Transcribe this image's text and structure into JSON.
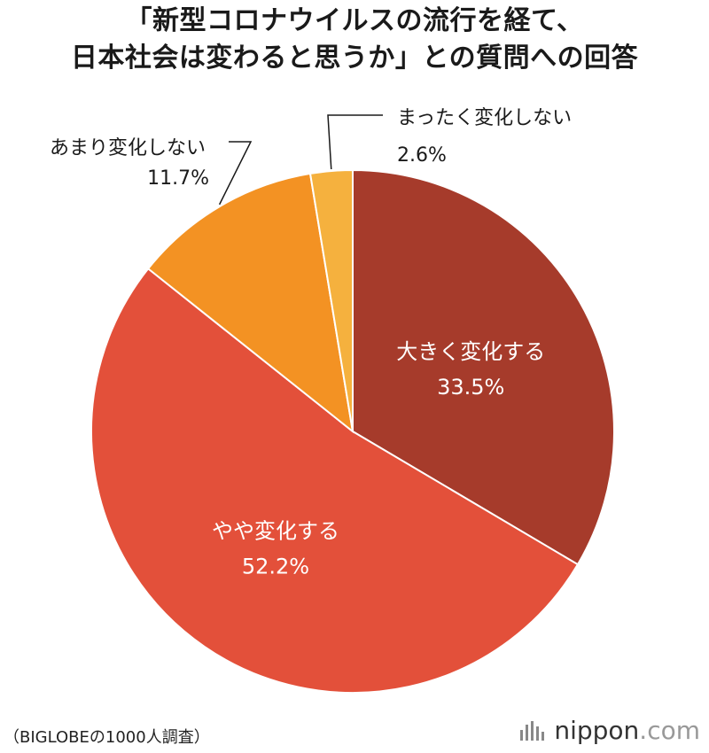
{
  "title": {
    "line1": "「新型コロナウイルスの流行を経て、",
    "line2": "日本社会は変わると思うか」との質問への回答"
  },
  "chart_data": {
    "type": "pie",
    "slices": [
      {
        "label": "大きく変化する",
        "value": 33.5,
        "value_text": "33.5%",
        "color": "#a63b2b",
        "label_position": "inside"
      },
      {
        "label": "やや変化する",
        "value": 52.2,
        "value_text": "52.2%",
        "color": "#e3503a",
        "label_position": "inside"
      },
      {
        "label": "あまり変化しない",
        "value": 11.7,
        "value_text": "11.7%",
        "color": "#f39223",
        "label_position": "outside"
      },
      {
        "label": "まったく変化しない",
        "value": 2.6,
        "value_text": "2.6%",
        "color": "#f5b13e",
        "label_position": "outside"
      }
    ],
    "start": "12 o'clock",
    "direction": "clockwise"
  },
  "source": "（BIGLOBEの1000人調査）",
  "brand": {
    "name": "nippon",
    "suffix": ".com"
  }
}
